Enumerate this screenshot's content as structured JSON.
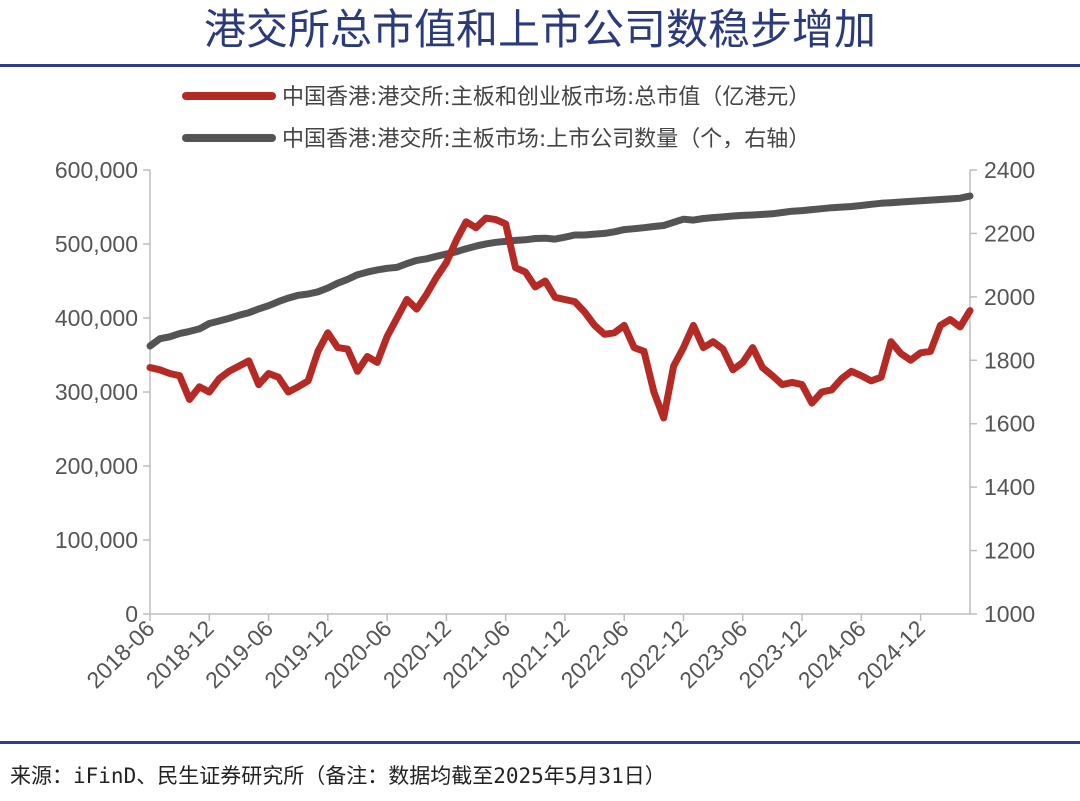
{
  "title": "港交所总市值和上市公司数稳步增加",
  "source": "来源：iFinD、民生证券研究所（备注：数据均截至2025年5月31日）",
  "chart_data": {
    "type": "line",
    "title": "港交所总市值和上市公司数稳步增加",
    "legend_position": "top",
    "grid": false,
    "x_ticks": [
      "2018-06",
      "2018-12",
      "2019-06",
      "2019-12",
      "2020-06",
      "2020-12",
      "2021-06",
      "2021-12",
      "2022-06",
      "2022-12",
      "2023-06",
      "2023-12",
      "2024-06",
      "2024-12"
    ],
    "x_range": [
      "2018-06",
      "2025-05"
    ],
    "y_left": {
      "min": 0,
      "max": 600000,
      "ticks": [
        "0",
        "100,000",
        "200,000",
        "300,000",
        "400,000",
        "500,000",
        "600,000"
      ]
    },
    "y_right": {
      "min": 1000,
      "max": 2400,
      "ticks": [
        "1000",
        "1200",
        "1400",
        "1600",
        "1800",
        "2000",
        "2200",
        "2400"
      ]
    },
    "series": [
      {
        "name": "中国香港:港交所:主板和创业板市场:总市值（亿港元）",
        "axis": "left",
        "color": "#b52a25",
        "start": "2018-06",
        "values": [
          333000,
          330000,
          325000,
          322000,
          290000,
          307000,
          300000,
          318000,
          328000,
          335000,
          342000,
          310000,
          325000,
          320000,
          300000,
          307000,
          315000,
          355000,
          380000,
          360000,
          358000,
          328000,
          348000,
          340000,
          375000,
          400000,
          425000,
          412000,
          432000,
          455000,
          475000,
          505000,
          530000,
          522000,
          535000,
          533000,
          527000,
          468000,
          462000,
          442000,
          450000,
          428000,
          425000,
          422000,
          408000,
          390000,
          378000,
          380000,
          390000,
          360000,
          355000,
          300000,
          265000,
          335000,
          360000,
          390000,
          360000,
          368000,
          358000,
          330000,
          340000,
          360000,
          333000,
          322000,
          310000,
          313000,
          310000,
          285000,
          300000,
          303000,
          318000,
          328000,
          322000,
          315000,
          320000,
          368000,
          352000,
          343000,
          353000,
          355000,
          390000,
          398000,
          388000,
          410000
        ]
      },
      {
        "name": "中国香港:港交所:主板市场:上市公司数量（个，右轴）",
        "axis": "right",
        "color": "#545454",
        "start": "2018-06",
        "values": [
          1845,
          1868,
          1874,
          1884,
          1891,
          1899,
          1916,
          1924,
          1932,
          1942,
          1950,
          1962,
          1972,
          1985,
          1996,
          2005,
          2009,
          2016,
          2028,
          2043,
          2055,
          2070,
          2078,
          2085,
          2090,
          2093,
          2105,
          2115,
          2120,
          2128,
          2135,
          2142,
          2152,
          2160,
          2167,
          2172,
          2175,
          2178,
          2180,
          2184,
          2185,
          2182,
          2188,
          2195,
          2195,
          2198,
          2200,
          2205,
          2212,
          2215,
          2218,
          2222,
          2225,
          2235,
          2245,
          2242,
          2247,
          2250,
          2252,
          2255,
          2257,
          2258,
          2260,
          2262,
          2266,
          2270,
          2272,
          2275,
          2278,
          2281,
          2283,
          2285,
          2288,
          2292,
          2295,
          2297,
          2299,
          2301,
          2303,
          2305,
          2307,
          2309,
          2311,
          2318
        ]
      }
    ]
  }
}
